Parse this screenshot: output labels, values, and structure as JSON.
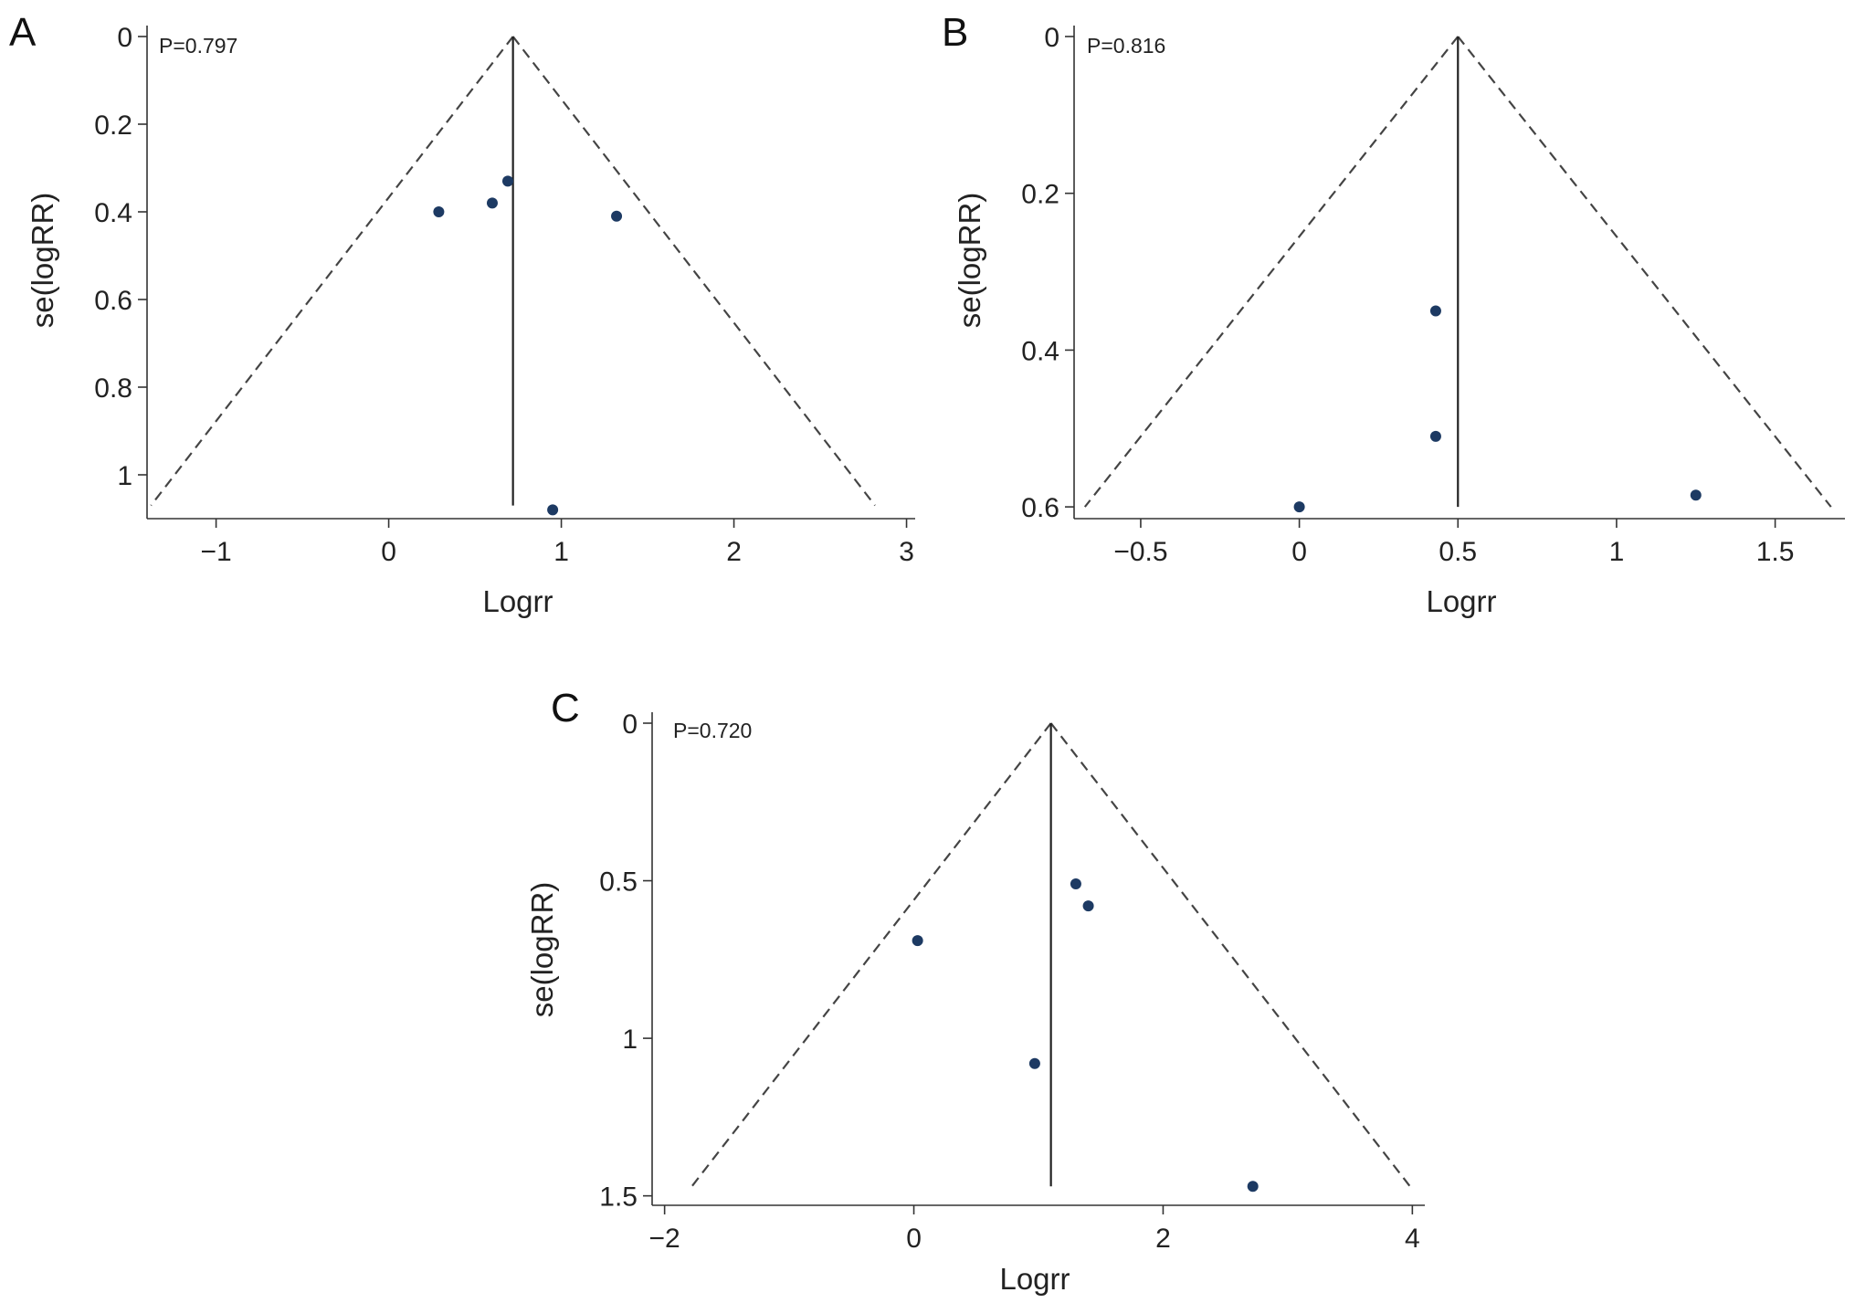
{
  "chart_data": [
    {
      "type": "scatter",
      "panel_label": "A",
      "annotation": "P=0.797",
      "xlabel": "Logrr",
      "ylabel": "se(logRR)",
      "xlim": [
        -1.4,
        3.05
      ],
      "ylim": [
        0,
        1.1
      ],
      "y_inverted": true,
      "x_ticks": [
        -1,
        0,
        1,
        2,
        3
      ],
      "x_tick_labels": [
        "−1",
        "0",
        "1",
        "2",
        "3"
      ],
      "y_ticks": [
        0,
        0.2,
        0.4,
        0.6,
        0.8,
        1
      ],
      "y_tick_labels": [
        "0",
        "0.2",
        "0.4",
        "0.6",
        "0.8",
        "1"
      ],
      "pooled_estimate": 0.72,
      "funnel_bottom_se": 1.07,
      "points": [
        {
          "x": 0.29,
          "y": 0.4
        },
        {
          "x": 0.6,
          "y": 0.38
        },
        {
          "x": 0.69,
          "y": 0.33
        },
        {
          "x": 1.32,
          "y": 0.41
        },
        {
          "x": 0.95,
          "y": 1.08
        }
      ],
      "point_color": "#1d3a63"
    },
    {
      "type": "scatter",
      "panel_label": "B",
      "annotation": "P=0.816",
      "xlabel": "Logrr",
      "ylabel": "se(logRR)",
      "xlim": [
        -0.71,
        1.72
      ],
      "ylim": [
        0,
        0.615
      ],
      "y_inverted": true,
      "x_ticks": [
        -0.5,
        0,
        0.5,
        1,
        1.5
      ],
      "x_tick_labels": [
        "−0.5",
        "0",
        "0.5",
        "1",
        "1.5"
      ],
      "y_ticks": [
        0,
        0.2,
        0.4,
        0.6
      ],
      "y_tick_labels": [
        "0",
        "0.2",
        "0.4",
        "0.6"
      ],
      "pooled_estimate": 0.5,
      "funnel_bottom_se": 0.6,
      "points": [
        {
          "x": 0.43,
          "y": 0.35
        },
        {
          "x": 0.43,
          "y": 0.51
        },
        {
          "x": 0.0,
          "y": 0.6
        },
        {
          "x": 1.25,
          "y": 0.585
        }
      ],
      "point_color": "#1d3a63"
    },
    {
      "type": "scatter",
      "panel_label": "C",
      "annotation": "P=0.720",
      "xlabel": "Logrr",
      "ylabel": "se(logRR)",
      "xlim": [
        -2.1,
        4.1
      ],
      "ylim": [
        0,
        1.53
      ],
      "y_inverted": true,
      "x_ticks": [
        -2,
        0,
        2,
        4
      ],
      "x_tick_labels": [
        "−2",
        "0",
        "2",
        "4"
      ],
      "y_ticks": [
        0,
        0.5,
        1,
        1.5
      ],
      "y_tick_labels": [
        "0",
        "0.5",
        "1",
        "1.5"
      ],
      "pooled_estimate": 1.1,
      "funnel_bottom_se": 1.47,
      "points": [
        {
          "x": 1.3,
          "y": 0.51
        },
        {
          "x": 1.4,
          "y": 0.58
        },
        {
          "x": 0.03,
          "y": 0.69
        },
        {
          "x": 0.97,
          "y": 1.08
        },
        {
          "x": 2.72,
          "y": 1.47
        }
      ],
      "point_color": "#1d3a63"
    }
  ]
}
